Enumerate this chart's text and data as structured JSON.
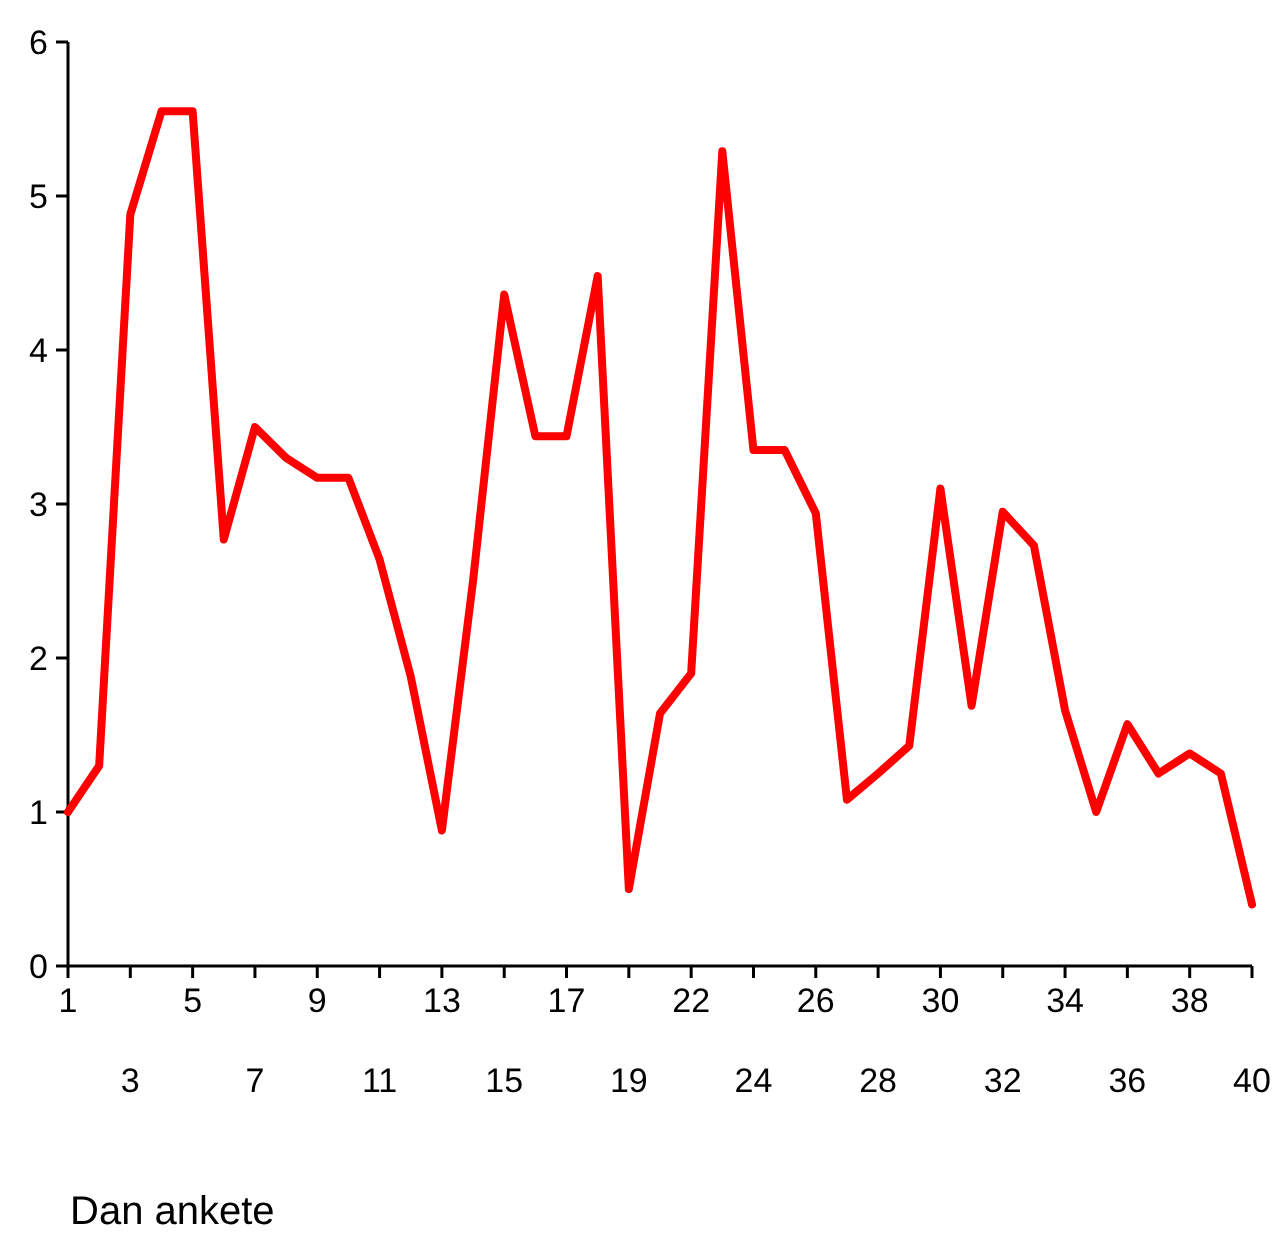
{
  "chart_data": {
    "type": "line",
    "xlabel": "Dan ankete",
    "categories": [
      "1",
      null,
      "3",
      null,
      "5",
      null,
      "7",
      null,
      "9",
      null,
      "11",
      null,
      "13",
      null,
      "15",
      null,
      "17",
      null,
      "19",
      null,
      "22",
      null,
      "24",
      null,
      "26",
      null,
      "28",
      null,
      "30",
      null,
      "32",
      null,
      "34",
      null,
      "36",
      null,
      "38",
      null,
      "40"
    ],
    "series": [
      {
        "color": "#ff0000",
        "values": [
          1.0,
          1.3,
          4.88,
          5.55,
          5.55,
          2.77,
          3.5,
          3.3,
          3.17,
          3.17,
          2.64,
          1.88,
          0.88,
          2.5,
          4.36,
          3.44,
          3.44,
          4.48,
          0.5,
          1.64,
          1.9,
          5.29,
          3.35,
          3.35,
          2.94,
          1.08,
          1.25,
          1.43,
          3.1,
          1.69,
          2.95,
          2.73,
          1.66,
          1.0,
          1.57,
          1.25,
          1.38,
          1.25,
          0.4
        ]
      }
    ],
    "ylim": [
      0,
      6
    ],
    "yticks": [
      0,
      1,
      2,
      3,
      4,
      5,
      6
    ],
    "marker": "none",
    "line_style": "solid"
  }
}
